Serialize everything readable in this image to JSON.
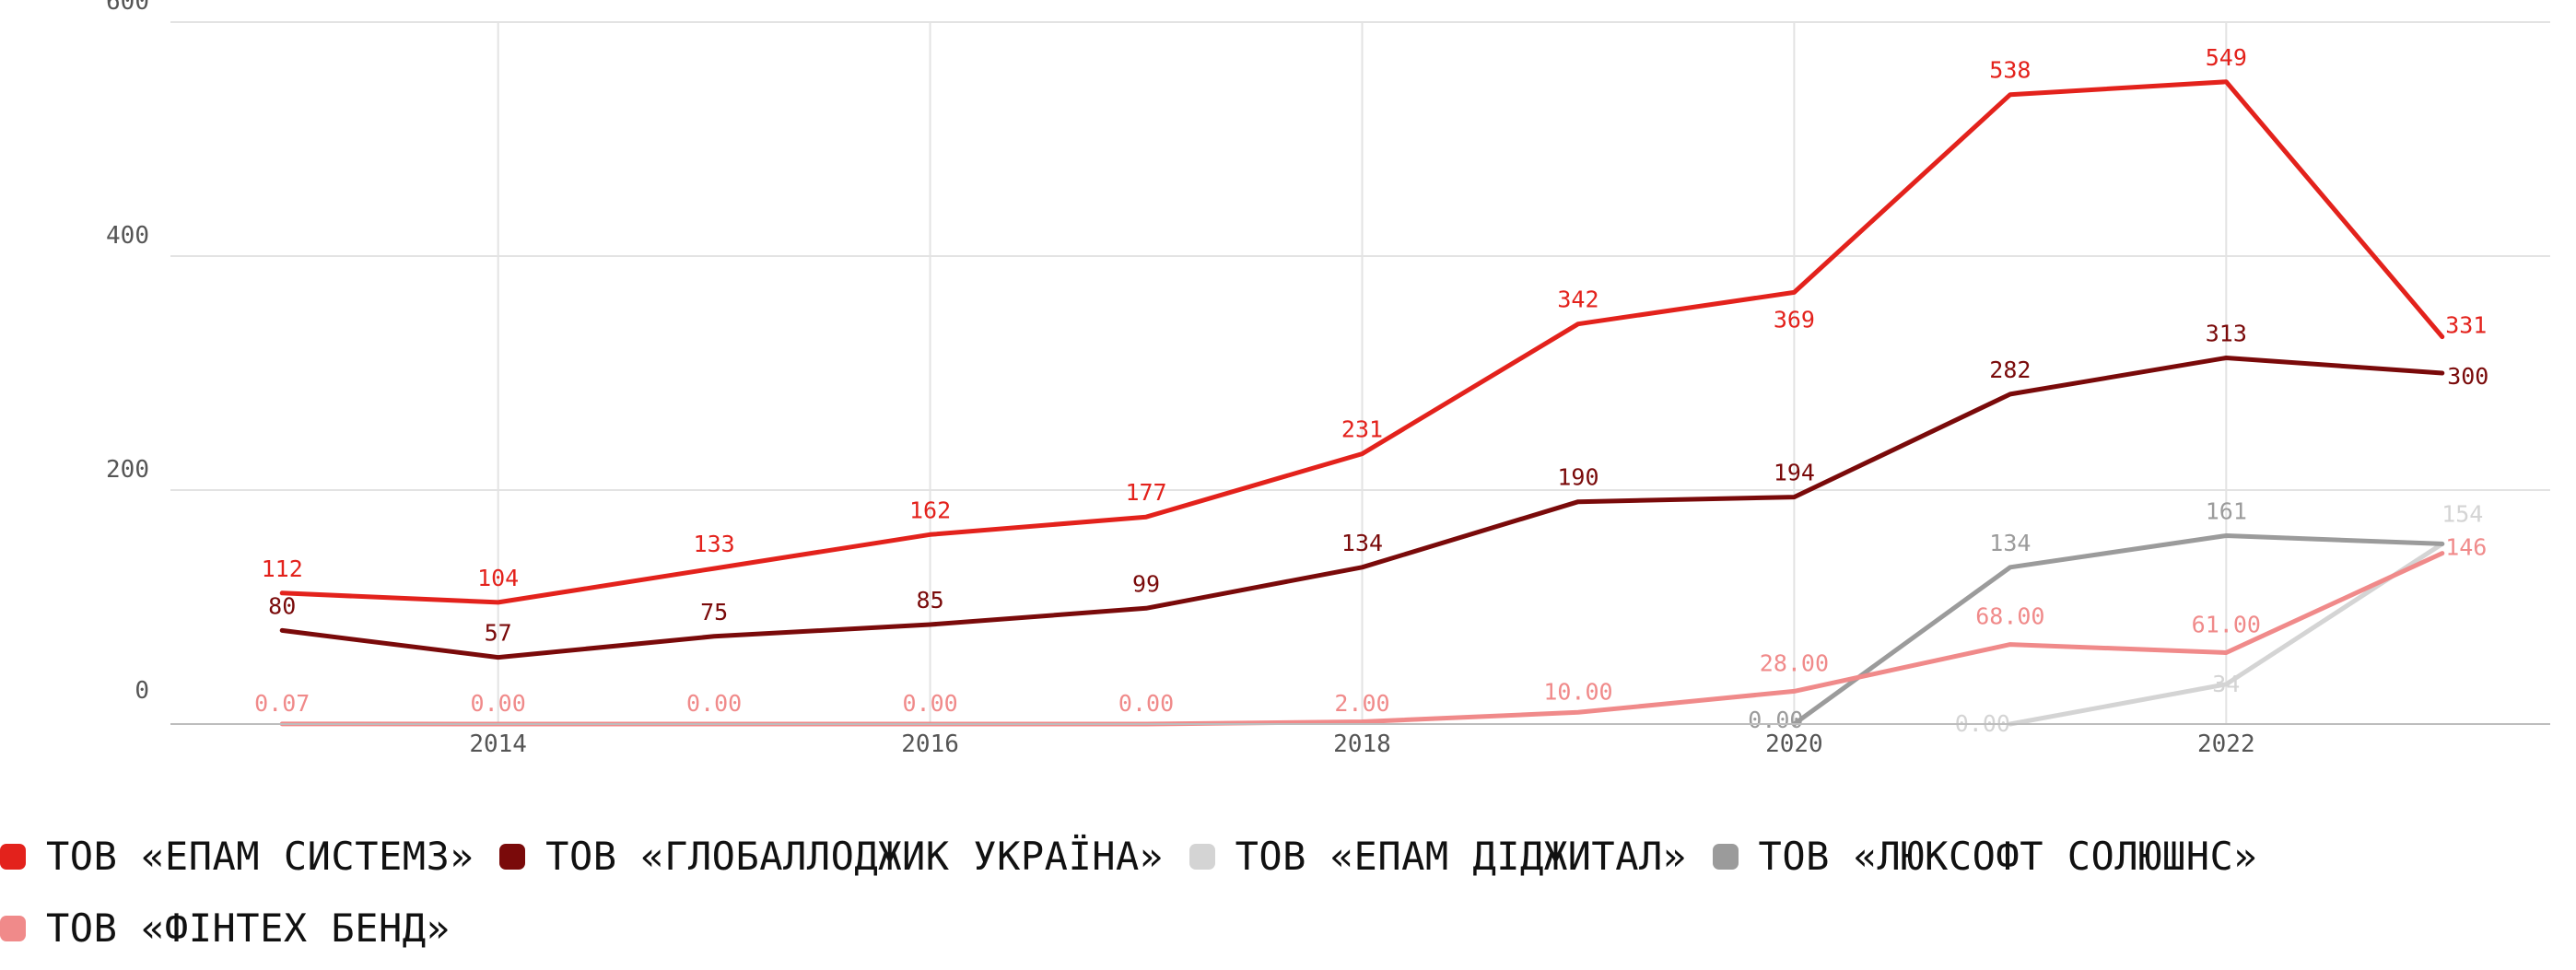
{
  "chart_data": {
    "type": "line",
    "x": [
      2013,
      2014,
      2015,
      2016,
      2017,
      2018,
      2019,
      2020,
      2021,
      2022,
      2023
    ],
    "x_ticks": [
      "2014",
      "2016",
      "2018",
      "2020",
      "2022"
    ],
    "y_ticks": [
      "0",
      "200",
      "400",
      "600"
    ],
    "ylim": [
      0,
      600
    ],
    "grid": true,
    "legend_position": "bottom",
    "series": [
      {
        "name": "ТОВ «ЕПАМ СИСТЕМЗ»",
        "color": "#e3221c",
        "values": [
          112,
          104,
          133,
          162,
          177,
          231,
          342,
          369,
          538,
          549,
          331
        ],
        "labels": [
          "112",
          "104",
          "133",
          "162",
          "177",
          "231",
          "342",
          "369",
          "538",
          "549",
          "331"
        ]
      },
      {
        "name": "ТОВ «ГЛОБАЛЛОДЖИК УКРАЇНА»",
        "color": "#7a0a0a",
        "values": [
          80,
          57,
          75,
          85,
          99,
          134,
          190,
          194,
          282,
          313,
          300
        ],
        "labels": [
          "80",
          "57",
          "75",
          "85",
          "99",
          "134",
          "190",
          "194",
          "282",
          "313",
          "300"
        ]
      },
      {
        "name": "ТОВ «ЕПАМ ДІДЖИТАЛ»",
        "color": "#d4d4d4",
        "values": [
          null,
          null,
          null,
          null,
          null,
          null,
          null,
          null,
          0,
          34,
          154
        ],
        "labels": [
          null,
          null,
          null,
          null,
          null,
          null,
          null,
          null,
          "0.00",
          "34",
          "154"
        ]
      },
      {
        "name": "ТОВ «ЛЮКСОФТ СОЛЮШНС»",
        "color": "#9b9b9b",
        "values": [
          null,
          null,
          null,
          null,
          null,
          null,
          null,
          0,
          134,
          161,
          154
        ],
        "labels": [
          null,
          null,
          null,
          null,
          null,
          null,
          null,
          "0.00",
          "134",
          "161",
          null
        ]
      },
      {
        "name": "ТОВ «ФІНТЕХ БЕНД»",
        "color": "#f08a8a",
        "values": [
          0.07,
          0,
          0,
          0,
          0,
          2,
          10,
          28,
          68,
          61,
          146
        ],
        "labels": [
          "0.07",
          "0.00",
          "0.00",
          "0.00",
          "0.00",
          "2.00",
          "10.00",
          "28.00",
          "68.00",
          "61.00",
          "146"
        ]
      }
    ]
  }
}
